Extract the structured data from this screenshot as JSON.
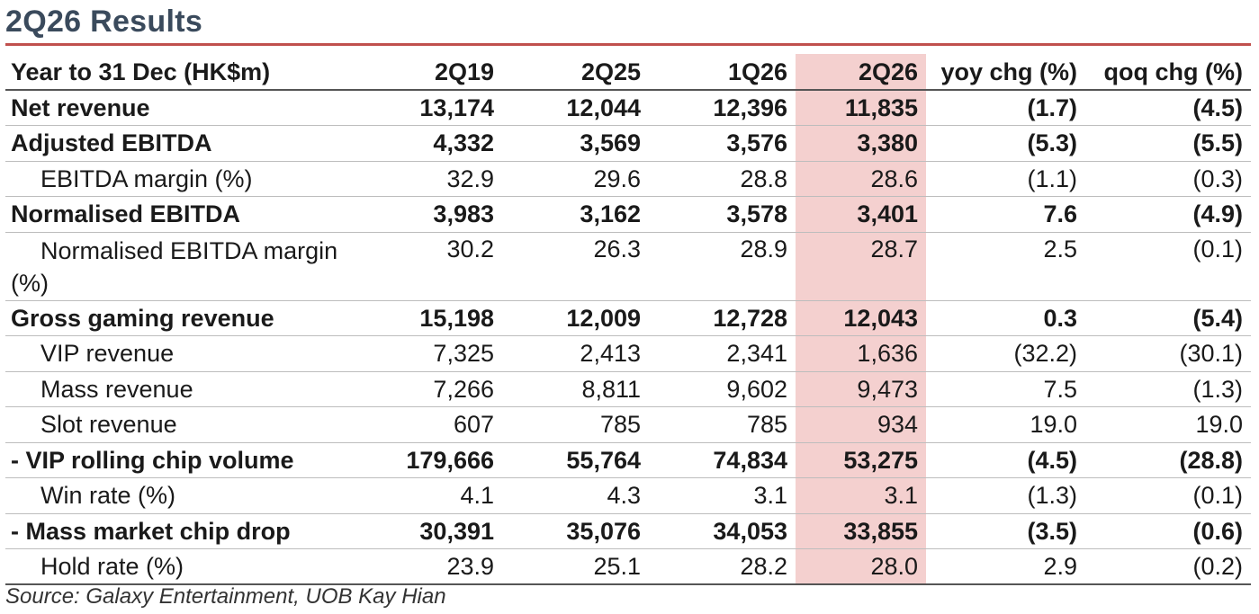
{
  "title": "2Q26 Results",
  "table": {
    "headers": [
      "Year to 31 Dec (HK$m)",
      "2Q19",
      "2Q25",
      "1Q26",
      "2Q26",
      "yoy chg (%)",
      "qoq chg (%)"
    ],
    "rows": [
      {
        "label": "Net revenue",
        "values": [
          "13,174",
          "12,044",
          "12,396",
          "11,835",
          "(1.7)",
          "(4.5)"
        ]
      },
      {
        "label": "Adjusted EBITDA",
        "values": [
          "4,332",
          "3,569",
          "3,576",
          "3,380",
          "(5.3)",
          "(5.5)"
        ]
      },
      {
        "label": "EBITDA margin (%)",
        "values": [
          "32.9",
          "29.6",
          "28.8",
          "28.6",
          "(1.1)",
          "(0.3)"
        ]
      },
      {
        "label": "Normalised EBITDA",
        "values": [
          "3,983",
          "3,162",
          "3,578",
          "3,401",
          "7.6",
          "(4.9)"
        ]
      },
      {
        "label_line1": "Normalised EBITDA margin",
        "label_line2": "(%)",
        "values": [
          "30.2",
          "26.3",
          "28.9",
          "28.7",
          "2.5",
          "(0.1)"
        ]
      },
      {
        "label": "Gross gaming revenue",
        "values": [
          "15,198",
          "12,009",
          "12,728",
          "12,043",
          "0.3",
          "(5.4)"
        ]
      },
      {
        "label": "VIP revenue",
        "values": [
          "7,325",
          "2,413",
          "2,341",
          "1,636",
          "(32.2)",
          "(30.1)"
        ]
      },
      {
        "label": "Mass revenue",
        "values": [
          "7,266",
          "8,811",
          "9,602",
          "9,473",
          "7.5",
          "(1.3)"
        ]
      },
      {
        "label": "Slot revenue",
        "values": [
          "607",
          "785",
          "785",
          "934",
          "19.0",
          "19.0"
        ]
      },
      {
        "label": "- VIP rolling chip volume",
        "values": [
          "179,666",
          "55,764",
          "74,834",
          "53,275",
          "(4.5)",
          "(28.8)"
        ]
      },
      {
        "label": "Win rate (%)",
        "values": [
          "4.1",
          "4.3",
          "3.1",
          "3.1",
          "(1.3)",
          "(0.1)"
        ]
      },
      {
        "label": "- Mass market chip drop",
        "values": [
          "30,391",
          "35,076",
          "34,053",
          "33,855",
          "(3.5)",
          "(0.6)"
        ]
      },
      {
        "label": "Hold rate (%)",
        "values": [
          "23.9",
          "25.1",
          "28.2",
          "28.0",
          "2.9",
          "(0.2)"
        ]
      }
    ]
  },
  "source": "Source: Galaxy Entertainment, UOB Kay Hian",
  "colors": {
    "accent_rule": "#c0504d",
    "highlight_column": "#f4d0cf",
    "title": "#3a4a5c"
  }
}
